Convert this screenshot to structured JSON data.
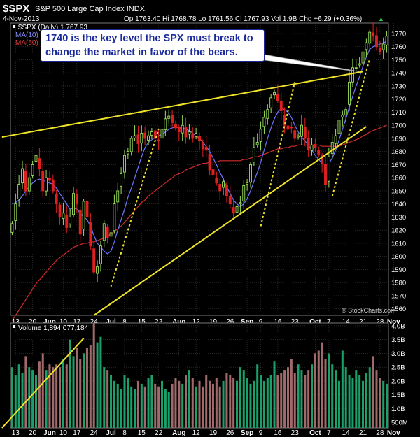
{
  "header": {
    "symbol": "$SPX",
    "name": "S&P 500 Large Cap Index",
    "exchange": "INDX",
    "date": "4-Nov-2013",
    "ohlc": "Op 1763.40  Hi 1768.78  Lo 1761.56  Cl 1767.93  Vol 1.9B  Chg +6.29 (+0.36%)",
    "chg_arrow": "▲",
    "watermark": "© StockCharts.com"
  },
  "legend": {
    "price_label": "$SPX (Daily) 1,767.93",
    "ma10_label": "MA(10)",
    "ma50_label": "MA(50)",
    "volume_label": "Volume 1,894,077,184"
  },
  "annotation": {
    "line1": "1740 is the key level the SPX must break to",
    "line2": "change the market in favor of the bears."
  },
  "colors": {
    "up": "#9be05a",
    "down": "#e02020",
    "ma10": "#6d78ff",
    "ma50": "#d22a2a",
    "trendline": "#f0e428",
    "volume_up": "#1aa06a",
    "volume_down": "#a06a6a",
    "grid": "#3a3a3a"
  },
  "chart_data": {
    "type": "candlestick",
    "y_range": [
      1555,
      1778
    ],
    "y_ticks": [
      1560,
      1570,
      1580,
      1590,
      1600,
      1610,
      1620,
      1630,
      1640,
      1650,
      1660,
      1670,
      1680,
      1690,
      1700,
      1710,
      1720,
      1730,
      1740,
      1750,
      1760,
      1770
    ],
    "x_tick_labels": [
      "13",
      "20",
      "Jun",
      "10",
      "17",
      "24",
      "Jul",
      "8",
      "15",
      "22",
      "Aug",
      "12",
      "19",
      "26",
      "Sep",
      "9",
      "16",
      "23",
      "Oct",
      "7",
      "14",
      "21",
      "28",
      "Nov"
    ],
    "x_tick_bars": [
      1,
      6,
      11,
      15,
      19,
      24,
      29,
      33,
      38,
      43,
      49,
      54,
      59,
      64,
      69,
      73,
      78,
      83,
      89,
      93,
      98,
      103,
      108,
      112
    ],
    "bold_ticks": [
      "Jun",
      "Jul",
      "Aug",
      "Sep",
      "Oct",
      "Nov"
    ],
    "closes": [
      1625,
      1640,
      1655,
      1667,
      1650,
      1660,
      1670,
      1677,
      1667,
      1650,
      1660,
      1658,
      1650,
      1640,
      1630,
      1633,
      1622,
      1630,
      1648,
      1640,
      1617,
      1642,
      1630,
      1608,
      1588,
      1592,
      1608,
      1625,
      1614,
      1618,
      1640,
      1650,
      1663,
      1677,
      1680,
      1690,
      1692,
      1686,
      1694,
      1690,
      1692,
      1695,
      1690,
      1688,
      1697,
      1705,
      1707,
      1702,
      1698,
      1695,
      1700,
      1691,
      1695,
      1690,
      1694,
      1688,
      1682,
      1681,
      1666,
      1662,
      1656,
      1650,
      1657,
      1646,
      1640,
      1633,
      1638,
      1641,
      1654,
      1656,
      1670,
      1683,
      1687,
      1697,
      1706,
      1712,
      1721,
      1725,
      1719,
      1711,
      1700,
      1697,
      1698,
      1690,
      1692,
      1700,
      1690,
      1681,
      1685,
      1683,
      1678,
      1671,
      1655,
      1676,
      1687,
      1692,
      1704,
      1708,
      1712,
      1733,
      1744,
      1744,
      1747,
      1756,
      1763,
      1771,
      1768,
      1760,
      1756,
      1762,
      1768
    ],
    "ma10": [
      1640,
      1641,
      1643,
      1646,
      1650,
      1653,
      1656,
      1658,
      1659,
      1658,
      1657,
      1656,
      1655,
      1652,
      1648,
      1644,
      1640,
      1636,
      1637,
      1636,
      1633,
      1630,
      1628,
      1623,
      1616,
      1610,
      1607,
      1604,
      1602,
      1604,
      1611,
      1620,
      1628,
      1636,
      1645,
      1652,
      1660,
      1668,
      1676,
      1683,
      1687,
      1689,
      1691,
      1692,
      1693,
      1695,
      1697,
      1698,
      1699,
      1698,
      1698,
      1697,
      1696,
      1694,
      1692,
      1690,
      1687,
      1684,
      1680,
      1675,
      1670,
      1664,
      1659,
      1653,
      1648,
      1643,
      1640,
      1638,
      1640,
      1644,
      1650,
      1657,
      1664,
      1672,
      1681,
      1690,
      1698,
      1705,
      1710,
      1713,
      1712,
      1710,
      1706,
      1700,
      1695,
      1691,
      1688,
      1685,
      1681,
      1677,
      1674,
      1671,
      1670,
      1671,
      1675,
      1681,
      1689,
      1697,
      1705,
      1714,
      1722,
      1730,
      1737,
      1745,
      1752,
      1758,
      1760,
      1761,
      1762,
      1763,
      1764
    ],
    "ma50": [
      1551,
      1555,
      1559,
      1563,
      1567,
      1571,
      1575,
      1579,
      1582,
      1585,
      1588,
      1591,
      1594,
      1597,
      1599,
      1601,
      1603,
      1605,
      1607,
      1608,
      1609,
      1610,
      1610,
      1611,
      1611,
      1612,
      1613,
      1614,
      1615,
      1617,
      1619,
      1621,
      1623,
      1626,
      1629,
      1632,
      1635,
      1638,
      1641,
      1643,
      1646,
      1648,
      1650,
      1652,
      1654,
      1656,
      1658,
      1660,
      1662,
      1663,
      1664,
      1666,
      1667,
      1668,
      1669,
      1670,
      1671,
      1671,
      1672,
      1672,
      1672,
      1673,
      1673,
      1673,
      1673,
      1673,
      1673,
      1673,
      1674,
      1674,
      1675,
      1676,
      1676,
      1677,
      1678,
      1679,
      1680,
      1681,
      1682,
      1682,
      1683,
      1683,
      1684,
      1684,
      1685,
      1685,
      1685,
      1685,
      1685,
      1685,
      1685,
      1684,
      1684,
      1684,
      1684,
      1684,
      1684,
      1685,
      1686,
      1687,
      1688,
      1689,
      1690,
      1692,
      1693,
      1695,
      1696,
      1697,
      1698,
      1699,
      1700
    ],
    "volume_range": [
      0.3,
      4.1
    ],
    "volume_ticks": [
      "500M",
      "1.0B",
      "1.5B",
      "2.0B",
      "2.5B",
      "3.0B",
      "3.5B",
      "4.0B"
    ],
    "volume_tick_values": [
      0.5,
      1.0,
      1.5,
      2.0,
      2.5,
      3.0,
      3.5,
      4.0
    ],
    "volumes": [
      2.5,
      2.2,
      2.6,
      2.3,
      2.9,
      2.5,
      2.4,
      2.2,
      2.7,
      3.0,
      2.4,
      2.6,
      2.5,
      2.6,
      2.5,
      2.8,
      2.6,
      3.5,
      2.9,
      3.2,
      2.8,
      3.0,
      3.2,
      3.3,
      4.1,
      3.4,
      3.6,
      2.5,
      2.4,
      2.2,
      2.0,
      1.9,
      1.7,
      2.2,
      2.1,
      1.8,
      1.7,
      2.0,
      1.9,
      1.8,
      2.1,
      2.2,
      1.9,
      1.8,
      2.0,
      1.7,
      1.6,
      1.9,
      2.1,
      2.0,
      1.9,
      2.2,
      2.4,
      2.1,
      1.8,
      2.0,
      1.8,
      2.2,
      2.0,
      1.9,
      2.1,
      1.8,
      2.0,
      2.3,
      2.2,
      2.1,
      2.0,
      2.5,
      2.4,
      2.1,
      1.9,
      2.0,
      2.6,
      2.2,
      2.0,
      2.1,
      2.2,
      2.7,
      2.2,
      2.3,
      2.4,
      2.5,
      2.8,
      2.3,
      2.6,
      2.4,
      2.2,
      2.4,
      2.6,
      3.0,
      3.1,
      3.4,
      2.8,
      3.0,
      2.6,
      2.4,
      2.0,
      3.1,
      2.5,
      2.2,
      2.1,
      2.4,
      2.2,
      2.0,
      2.3,
      2.5,
      2.9,
      2.4,
      2.1,
      2.0,
      1.9
    ],
    "trendlines": [
      {
        "from": [
          -3,
          1691
        ],
        "to": [
          103,
          1741
        ],
        "role": "resistance"
      },
      {
        "from": [
          24,
          1555
        ],
        "to": [
          104,
          1699
        ],
        "role": "support"
      }
    ],
    "volume_trendline": {
      "from": [
        -3,
        0.3
      ],
      "to": [
        21,
        3.55
      ]
    },
    "dotted_trendlines": [
      {
        "from": [
          29,
          1577
        ],
        "to": [
          43,
          1697
        ]
      },
      {
        "from": [
          73,
          1623
        ],
        "to": [
          83,
          1733
        ]
      },
      {
        "from": [
          94,
          1646
        ],
        "to": [
          105,
          1751
        ]
      }
    ],
    "callout_pointer_target": [
      102,
      1741
    ]
  }
}
